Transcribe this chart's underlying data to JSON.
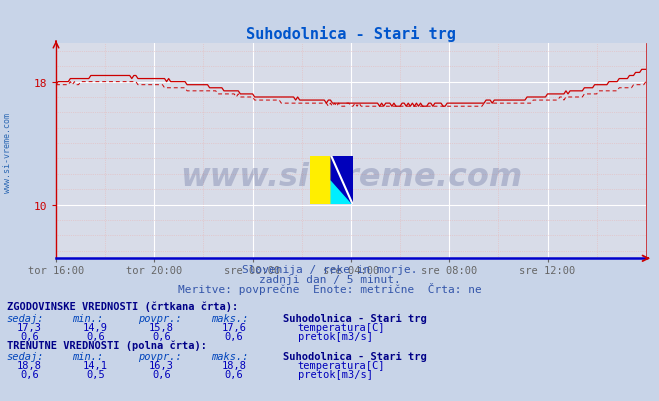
{
  "title": "Suhodolnica - Stari trg",
  "title_color": "#0055cc",
  "bg_color": "#c8d4e8",
  "plot_bg_color": "#d8dce8",
  "grid_color_white": "#ffffff",
  "grid_color_pink": "#e8b8b8",
  "xlabel_ticks": [
    "tor 16:00",
    "tor 20:00",
    "sre 00:00",
    "sre 04:00",
    "sre 08:00",
    "sre 12:00"
  ],
  "ytick_labels": [
    "10",
    "18"
  ],
  "ytick_vals": [
    10,
    18
  ],
  "ymin": 6.5,
  "ymax": 20.5,
  "xmin": 0,
  "xmax": 288,
  "subtitle1": "Slovenija / reke in morje.",
  "subtitle2": "zadnji dan / 5 minut.",
  "subtitle3": "Meritve: povprečne  Enote: metrične  Črta: ne",
  "subtitle_color": "#3355aa",
  "watermark_text": "www.si-vreme.com",
  "watermark_color": "#112266",
  "left_label": "www.si-vreme.com",
  "left_label_color": "#1155aa",
  "table_header_color": "#000088",
  "table_value_color": "#0000bb",
  "hist_label": "ZGODOVINSKE VREDNOSTI (črtkana črta):",
  "curr_label": "TRENUTNE VREDNOSTI (polna črta):",
  "col_headers": [
    "sedaj:",
    "min.:",
    "povpr.:",
    "maks.:"
  ],
  "station_name": "Suhodolnica - Stari trg",
  "hist_temp": {
    "sedaj": "17,3",
    "min": "14,9",
    "povpr": "15,8",
    "maks": "17,6"
  },
  "hist_flow": {
    "sedaj": "0,6",
    "min": "0,6",
    "povpr": "0,6",
    "maks": "0,6"
  },
  "curr_temp": {
    "sedaj": "18,8",
    "min": "14,1",
    "povpr": "16,3",
    "maks": "18,8"
  },
  "curr_flow": {
    "sedaj": "0,6",
    "min": "0,5",
    "povpr": "0,6",
    "maks": "0,6"
  },
  "temp_color": "#cc0000",
  "flow_color": "#008800",
  "axis_left_color": "#cc0000",
  "axis_bottom_color": "#0000cc",
  "axis_right_color": "#cc0000",
  "n_points": 289,
  "logo_yellow": "#ffee00",
  "logo_cyan": "#00eeff",
  "logo_blue": "#0000bb",
  "logo_darkblue": "#003399"
}
